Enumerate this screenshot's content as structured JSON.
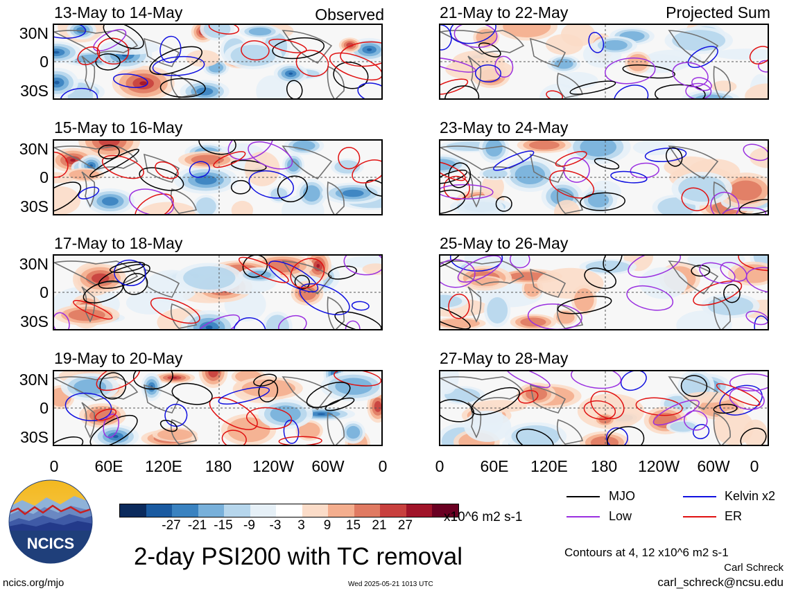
{
  "panels_left": [
    {
      "title": "13-May to 14-May",
      "label": "Observed"
    },
    {
      "title": "15-May to 16-May",
      "label": ""
    },
    {
      "title": "17-May to 18-May",
      "label": ""
    },
    {
      "title": "19-May to 20-May",
      "label": ""
    }
  ],
  "panels_right": [
    {
      "title": "21-May to 22-May",
      "label": "Projected Sum"
    },
    {
      "title": "23-May to 24-May",
      "label": ""
    },
    {
      "title": "25-May to 26-May",
      "label": ""
    },
    {
      "title": "27-May to 28-May",
      "label": ""
    }
  ],
  "lat_labels": [
    "30N",
    "0",
    "30S"
  ],
  "lon_labels": [
    "0",
    "60E",
    "120E",
    "180",
    "120W",
    "60W",
    "0"
  ],
  "colorbar": {
    "colors": [
      "#0b2a5c",
      "#1a5aa0",
      "#3a82c0",
      "#78b0da",
      "#b6d6ec",
      "#e6f0f7",
      "#ffffff",
      "#fbdcc8",
      "#f4ae8e",
      "#e07a62",
      "#c8403e",
      "#a01429",
      "#6a0022"
    ],
    "ticks": [
      "-27",
      "-21",
      "-15",
      "-9",
      "-3",
      "3",
      "9",
      "15",
      "21",
      "27"
    ],
    "units": "x10^6 m2 s-1"
  },
  "legend": [
    {
      "label": "MJO",
      "color": "#000000"
    },
    {
      "label": "Kelvin x2",
      "color": "#1010e0"
    },
    {
      "label": "Low",
      "color": "#9a2fe0"
    },
    {
      "label": "ER",
      "color": "#e01010"
    }
  ],
  "main_title": "2-day PSI200 with TC removal",
  "contours_note": "Contours at 4, 12 x10^6 m2 s-1",
  "author": "Carl Schreck",
  "email": "carl_schreck@ncsu.edu",
  "site": "ncics.org/mjo",
  "timestamp": "Wed 2025-05-21 1013 UTC",
  "logo_text": "NCICS"
}
